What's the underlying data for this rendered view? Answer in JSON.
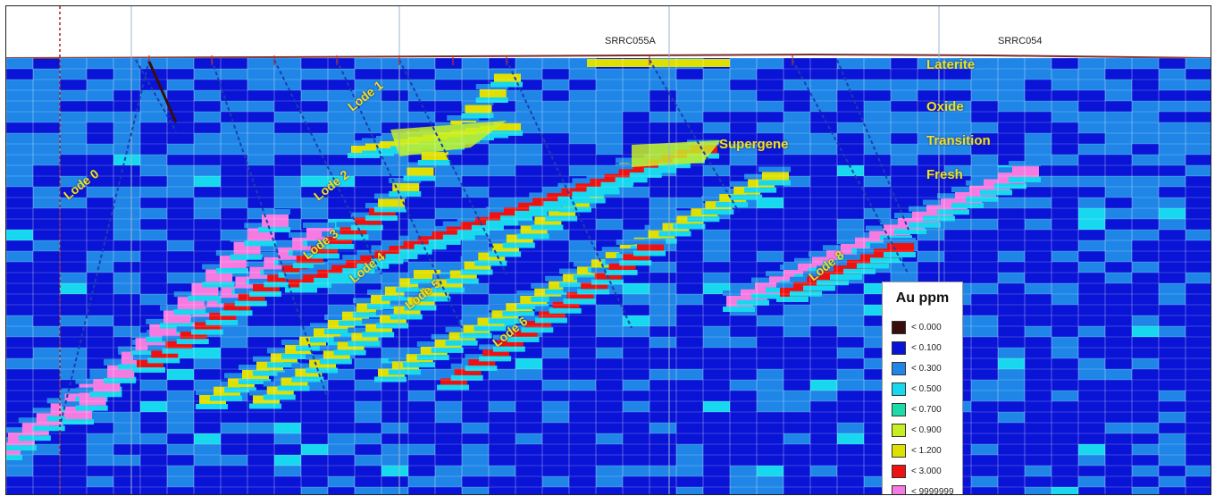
{
  "drillholes": [
    {
      "name": "SRRC055A"
    },
    {
      "name": "SRRC054"
    }
  ],
  "zones": [
    {
      "label": "Laterite"
    },
    {
      "label": "Oxide"
    },
    {
      "label": "Transition"
    },
    {
      "label": "Supergene"
    },
    {
      "label": "Fresh"
    }
  ],
  "lodes": [
    {
      "label": "Lode 0"
    },
    {
      "label": "Lode 1"
    },
    {
      "label": "Lode 2"
    },
    {
      "label": "Lode 3"
    },
    {
      "label": "Lode 4"
    },
    {
      "label": "Lode 5"
    },
    {
      "label": "Lode 6"
    },
    {
      "label": "Lode 8"
    }
  ],
  "legend": {
    "title": "Au ppm",
    "items": [
      {
        "label": "< 0.000",
        "color": "#3a0d0d"
      },
      {
        "label": "< 0.100",
        "color": "#0a14d6"
      },
      {
        "label": "< 0.300",
        "color": "#1f86e8"
      },
      {
        "label": "< 0.500",
        "color": "#17d8ee"
      },
      {
        "label": "< 0.700",
        "color": "#1cdba8"
      },
      {
        "label": "< 0.900",
        "color": "#c6ee22"
      },
      {
        "label": "< 1.200",
        "color": "#e0e000"
      },
      {
        "label": "< 3.000",
        "color": "#ee1111"
      },
      {
        "label": "< 9999999",
        "color": "#f57be3"
      }
    ]
  }
}
